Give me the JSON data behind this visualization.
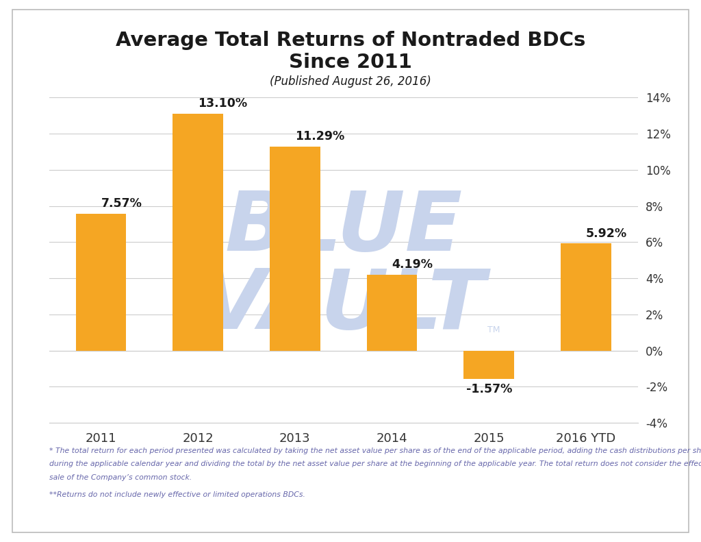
{
  "categories": [
    "2011",
    "2012",
    "2013",
    "2014",
    "2015",
    "2016 YTD"
  ],
  "values": [
    7.57,
    13.1,
    11.29,
    4.19,
    -1.57,
    5.92
  ],
  "labels": [
    "7.57%",
    "13.10%",
    "11.29%",
    "4.19%",
    "-1.57%",
    "5.92%"
  ],
  "bar_color": "#F5A623",
  "title_line1": "Average Total Returns of Nontraded BDCs",
  "title_line2": "Since 2011",
  "subtitle": "(Published August 26, 2016)",
  "ylim": [
    -4,
    14
  ],
  "yticks": [
    -4,
    -2,
    0,
    2,
    4,
    6,
    8,
    10,
    12,
    14
  ],
  "ytick_labels": [
    "-4%",
    "-2%",
    "0%",
    "2%",
    "4%",
    "6%",
    "8%",
    "10%",
    "12%",
    "14%"
  ],
  "footnote1": "* The total return for each period presented was calculated by taking the net asset value per share as of the end of the applicable period, adding the cash distributions per share which were declared",
  "footnote2": "during the applicable calendar year and dividing the total by the net asset value per share at the beginning of the applicable year. The total return does not consider the effect of the sales load from the",
  "footnote3": "sale of the Company’s common stock.",
  "footnote4": "**Returns do not include newly effective or limited operations BDCs.",
  "background_color": "#FFFFFF",
  "grid_color": "#CCCCCC",
  "title_color": "#1a1a1a",
  "subtitle_color": "#1a1a1a",
  "label_color": "#1a1a1a",
  "footnote_color": "#6666AA",
  "watermark_color": "#C8D4EC",
  "border_color": "#BBBBBB"
}
